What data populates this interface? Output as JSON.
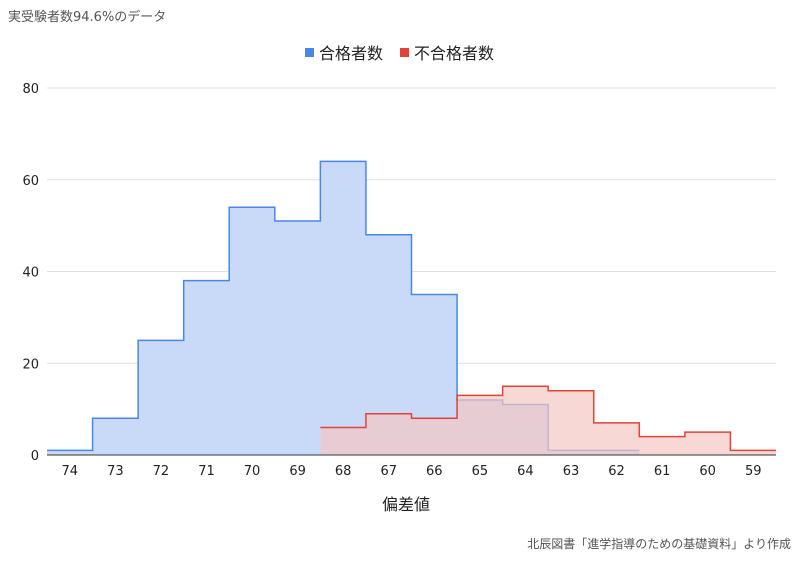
{
  "header": {
    "title": "実受験者数94.6%のデータ"
  },
  "footer": {
    "source": "北辰図書「進学指導のための基礎資料」より作成"
  },
  "colors": {
    "pass_line": "#4a86e8",
    "pass_fill": "#c9daf8",
    "fail_line": "#e0433a",
    "fail_fill": "#f4c7c3",
    "grid": "#e0e0e0"
  },
  "chart_data": {
    "type": "area",
    "step": true,
    "xlabel": "偏差値",
    "ylabel": "",
    "ylim": [
      0,
      80
    ],
    "yticks": [
      0,
      20,
      40,
      60,
      80
    ],
    "categories": [
      "74",
      "73",
      "72",
      "71",
      "70",
      "69",
      "68",
      "67",
      "66",
      "65",
      "64",
      "63",
      "62",
      "61",
      "60",
      "59"
    ],
    "legend_position": "top",
    "grid": true,
    "series": [
      {
        "name": "合格者数",
        "values": [
          1,
          8,
          25,
          38,
          54,
          51,
          64,
          48,
          35,
          12,
          11,
          1,
          1,
          null,
          null,
          null
        ]
      },
      {
        "name": "不合格者数",
        "values": [
          null,
          null,
          null,
          null,
          null,
          null,
          6,
          9,
          8,
          13,
          15,
          14,
          7,
          4,
          5,
          1
        ]
      }
    ]
  }
}
